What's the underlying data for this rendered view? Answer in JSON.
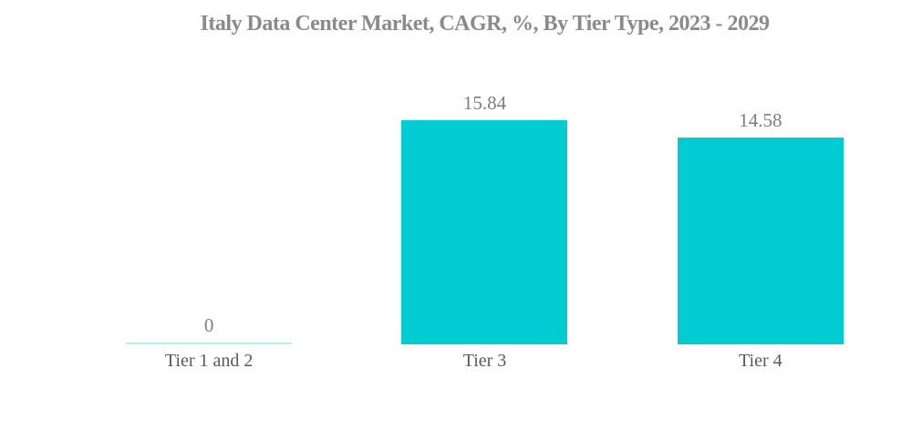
{
  "chart_data": {
    "type": "bar",
    "title": "Italy Data Center Market, CAGR, %, By Tier Type, 2023 - 2029",
    "categories": [
      "Tier 1 and 2",
      "Tier 3",
      "Tier 4"
    ],
    "values": [
      0,
      15.84,
      14.58
    ],
    "value_labels": [
      "0",
      "15.84",
      "14.58"
    ],
    "xlabel": "",
    "ylabel": "",
    "ylim": [
      0,
      19.5
    ],
    "grid": false,
    "legend": false,
    "axes_visible": false,
    "bar_color": "#00CCD2",
    "zero_bar_color": "#B5EDF0",
    "title_color": "#8A8A8A",
    "value_label_color": "#7D7D7D",
    "category_label_color": "#595959",
    "background": "#FFFFFF"
  }
}
